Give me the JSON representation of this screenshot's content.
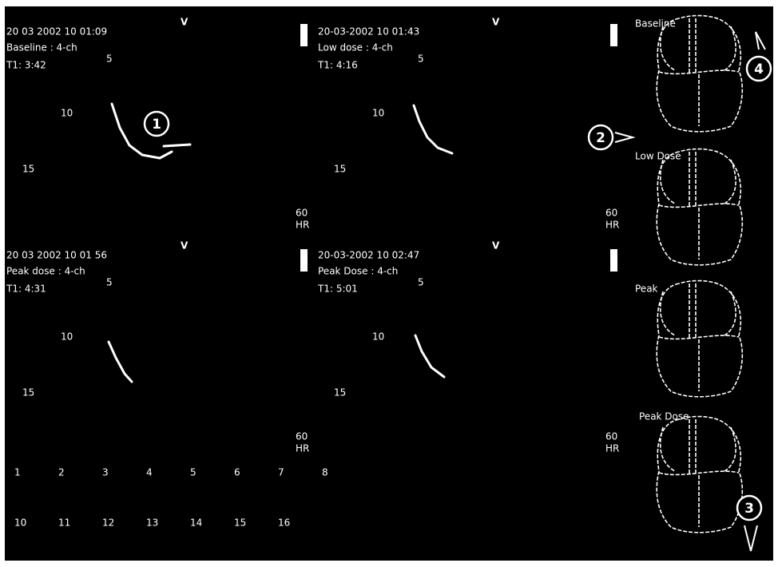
{
  "panels": [
    {
      "timestamp": "20 03 2002 10 01:09",
      "view": "Baseline : 4-ch",
      "t1": "T1: 3:42",
      "marker": "V",
      "depths": [
        "5",
        "10",
        "15"
      ],
      "hr": "60",
      "hr_unit": "HR"
    },
    {
      "timestamp": "20-03-2002 10 01:43",
      "view": "Low dose : 4-ch",
      "t1": "T1: 4:16",
      "marker": "V",
      "depths": [
        "5",
        "10",
        "15"
      ],
      "hr": "60",
      "hr_unit": "HR"
    },
    {
      "timestamp": "20 03 2002 10 01 56",
      "view": "Peak dose : 4-ch",
      "t1": "T1: 4:31",
      "marker": "V",
      "depths": [
        "5",
        "10",
        "15"
      ],
      "hr": "60",
      "hr_unit": "HR"
    },
    {
      "timestamp": "20-03-2002 10 02:47",
      "view": "Peak Dose : 4-ch",
      "t1": "T1: 5:01",
      "marker": "V",
      "depths": [
        "5",
        "10",
        "15"
      ],
      "hr": "60",
      "hr_unit": "HR"
    }
  ],
  "segments": {
    "row1": [
      "1",
      "2",
      "3",
      "4",
      "5",
      "6",
      "7",
      "8"
    ],
    "row2": [
      "10",
      "11",
      "12",
      "13",
      "14",
      "15",
      "16"
    ]
  },
  "diagram_labels": [
    "Baseline",
    "Low Dose",
    "Peak",
    "Peak Dose"
  ],
  "callouts": [
    "1",
    "2",
    "3",
    "4"
  ]
}
